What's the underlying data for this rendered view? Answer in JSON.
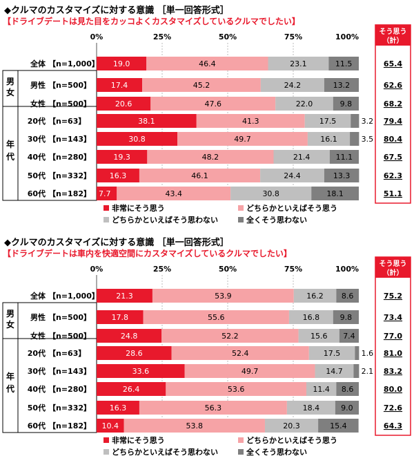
{
  "colors": {
    "very": "#e8192c",
    "somewhat": "#f6a3a6",
    "not_much": "#bfbfbf",
    "not_at_all": "#7f7f7f",
    "accent": "#e8192c"
  },
  "axis_ticks": [
    "0%",
    "25%",
    "50%",
    "75%",
    "100%"
  ],
  "group_labels": {
    "gender": "男女",
    "age": "年代"
  },
  "legend": [
    "非常にそう思う",
    "どちらかといえばそう思う",
    "どちらかといえばそう思わない",
    "全くそう思わない"
  ],
  "summary_header": [
    "そう思う",
    "（計）"
  ],
  "chart_data": [
    {
      "type": "bar",
      "stacked": true,
      "orientation": "horizontal",
      "title": "◆クルマのカスタマイズに対する意識 ［単一回答形式］",
      "subtitle": "【ドライブデートは見た目をカッコよくカスタマイズしているクルマでしたい】",
      "xlim": [
        0,
        100
      ],
      "rows": [
        {
          "label": "全体",
          "n": "【n=1,000】",
          "group": "none",
          "total": "65.4"
        },
        {
          "label": "男性",
          "n": "【n=500】",
          "group": "gender",
          "total": "62.6"
        },
        {
          "label": "女性",
          "n": "【n=500】",
          "group": "gender",
          "total": "68.2"
        },
        {
          "label": "20代",
          "n": "【n=63】",
          "group": "age",
          "total": "79.4"
        },
        {
          "label": "30代",
          "n": "【n=143】",
          "group": "age",
          "total": "80.4"
        },
        {
          "label": "40代",
          "n": "【n=280】",
          "group": "age",
          "total": "67.5"
        },
        {
          "label": "50代",
          "n": "【n=332】",
          "group": "age",
          "total": "62.3"
        },
        {
          "label": "60代",
          "n": "【n=182】",
          "group": "age",
          "total": "51.1"
        }
      ],
      "series": [
        {
          "name": "非常にそう思う",
          "values": [
            19.0,
            17.4,
            20.6,
            38.1,
            30.8,
            19.3,
            16.3,
            7.7
          ]
        },
        {
          "name": "どちらかといえばそう思う",
          "values": [
            46.4,
            45.2,
            47.6,
            41.3,
            49.7,
            48.2,
            46.1,
            43.4
          ]
        },
        {
          "name": "どちらかといえばそう思わない",
          "values": [
            23.1,
            24.2,
            22.0,
            17.5,
            16.1,
            21.4,
            24.4,
            30.8
          ]
        },
        {
          "name": "全くそう思わない",
          "values": [
            11.5,
            13.2,
            9.8,
            3.2,
            3.5,
            11.1,
            13.3,
            18.1
          ]
        }
      ]
    },
    {
      "type": "bar",
      "stacked": true,
      "orientation": "horizontal",
      "title": "◆クルマのカスタマイズに対する意識 ［単一回答形式］",
      "subtitle": "【ドライブデートは車内を快適空間にカスタマイズしているクルマでしたい】",
      "xlim": [
        0,
        100
      ],
      "rows": [
        {
          "label": "全体",
          "n": "【n=1,000】",
          "group": "none",
          "total": "75.2"
        },
        {
          "label": "男性",
          "n": "【n=500】",
          "group": "gender",
          "total": "73.4"
        },
        {
          "label": "女性",
          "n": "【n=500】",
          "group": "gender",
          "total": "77.0"
        },
        {
          "label": "20代",
          "n": "【n=63】",
          "group": "age",
          "total": "81.0"
        },
        {
          "label": "30代",
          "n": "【n=143】",
          "group": "age",
          "total": "83.2"
        },
        {
          "label": "40代",
          "n": "【n=280】",
          "group": "age",
          "total": "80.0"
        },
        {
          "label": "50代",
          "n": "【n=332】",
          "group": "age",
          "total": "72.6"
        },
        {
          "label": "60代",
          "n": "【n=182】",
          "group": "age",
          "total": "64.3"
        }
      ],
      "series": [
        {
          "name": "非常にそう思う",
          "values": [
            21.3,
            17.8,
            24.8,
            28.6,
            33.6,
            26.4,
            16.3,
            10.4
          ]
        },
        {
          "name": "どちらかといえばそう思う",
          "values": [
            53.9,
            55.6,
            52.2,
            52.4,
            49.7,
            53.6,
            56.3,
            53.8
          ]
        },
        {
          "name": "どちらかといえばそう思わない",
          "values": [
            16.2,
            16.8,
            15.6,
            17.5,
            14.7,
            11.4,
            18.4,
            20.3
          ]
        },
        {
          "name": "全くそう思わない",
          "values": [
            8.6,
            9.8,
            7.4,
            1.6,
            2.1,
            8.6,
            9.0,
            15.4
          ]
        }
      ]
    }
  ]
}
